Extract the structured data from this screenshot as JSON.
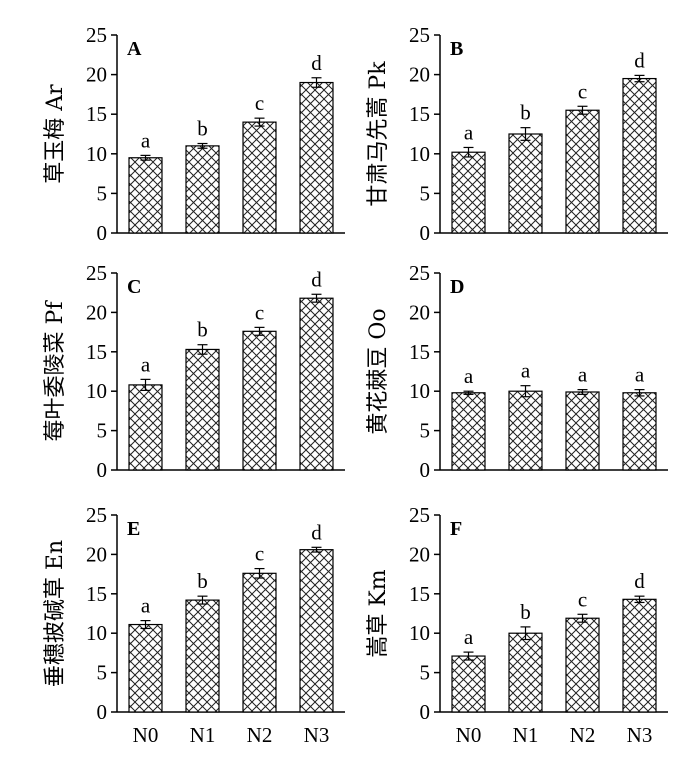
{
  "chart_data": [
    {
      "panel": "A",
      "type": "bar",
      "ylabel": "草玉梅 Ar",
      "categories": [
        "N0",
        "N1",
        "N2",
        "N3"
      ],
      "values": [
        9.5,
        11.0,
        14.0,
        19.0
      ],
      "errors": [
        0.3,
        0.3,
        0.5,
        0.6
      ],
      "letters": [
        "a",
        "b",
        "c",
        "d"
      ],
      "ylim": [
        0,
        25
      ],
      "yticks": [
        0,
        5,
        10,
        15,
        20,
        25
      ],
      "show_xticklabels": false
    },
    {
      "panel": "B",
      "type": "bar",
      "ylabel": "甘肃马先蒿 Pk",
      "categories": [
        "N0",
        "N1",
        "N2",
        "N3"
      ],
      "values": [
        10.2,
        12.5,
        15.5,
        19.5
      ],
      "errors": [
        0.6,
        0.8,
        0.5,
        0.4
      ],
      "letters": [
        "a",
        "b",
        "c",
        "d"
      ],
      "ylim": [
        0,
        25
      ],
      "yticks": [
        0,
        5,
        10,
        15,
        20,
        25
      ],
      "show_xticklabels": false
    },
    {
      "panel": "C",
      "type": "bar",
      "ylabel": "莓叶委陵菜 Pf",
      "categories": [
        "N0",
        "N1",
        "N2",
        "N3"
      ],
      "values": [
        10.8,
        15.3,
        17.6,
        21.8
      ],
      "errors": [
        0.7,
        0.6,
        0.5,
        0.5
      ],
      "letters": [
        "a",
        "b",
        "c",
        "d"
      ],
      "ylim": [
        0,
        25
      ],
      "yticks": [
        0,
        5,
        10,
        15,
        20,
        25
      ],
      "show_xticklabels": false
    },
    {
      "panel": "D",
      "type": "bar",
      "ylabel": "黄花棘豆 Oo",
      "categories": [
        "N0",
        "N1",
        "N2",
        "N3"
      ],
      "values": [
        9.8,
        10.0,
        9.9,
        9.8
      ],
      "errors": [
        0.2,
        0.7,
        0.3,
        0.4
      ],
      "letters": [
        "a",
        "a",
        "a",
        "a"
      ],
      "ylim": [
        0,
        25
      ],
      "yticks": [
        0,
        5,
        10,
        15,
        20,
        25
      ],
      "show_xticklabels": false
    },
    {
      "panel": "E",
      "type": "bar",
      "ylabel": "垂穗披碱草 En",
      "categories": [
        "N0",
        "N1",
        "N2",
        "N3"
      ],
      "values": [
        11.1,
        14.2,
        17.6,
        20.6
      ],
      "errors": [
        0.5,
        0.5,
        0.6,
        0.3
      ],
      "letters": [
        "a",
        "b",
        "c",
        "d"
      ],
      "ylim": [
        0,
        25
      ],
      "yticks": [
        0,
        5,
        10,
        15,
        20,
        25
      ],
      "show_xticklabels": true
    },
    {
      "panel": "F",
      "type": "bar",
      "ylabel": "嵩草 Km",
      "categories": [
        "N0",
        "N1",
        "N2",
        "N3"
      ],
      "values": [
        7.1,
        10.0,
        11.9,
        14.3
      ],
      "errors": [
        0.5,
        0.8,
        0.5,
        0.4
      ],
      "letters": [
        "a",
        "b",
        "c",
        "d"
      ],
      "ylim": [
        0,
        25
      ],
      "yticks": [
        0,
        5,
        10,
        15,
        20,
        25
      ],
      "show_xticklabels": true
    }
  ]
}
